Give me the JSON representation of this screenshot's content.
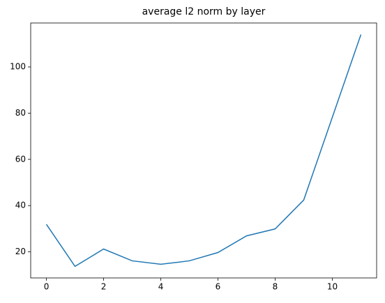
{
  "chart_data": {
    "type": "line",
    "title": "average l2 norm by layer",
    "x": [
      0,
      1,
      2,
      3,
      4,
      5,
      6,
      7,
      8,
      9,
      10,
      11
    ],
    "series": [
      {
        "name": "average l2 norm",
        "color": "#1f77b4",
        "values": [
          31.9,
          13.7,
          21.2,
          16.1,
          14.6,
          16.1,
          19.7,
          26.9,
          29.9,
          42.4,
          78.2,
          114.0
        ]
      }
    ],
    "xlim": [
      -0.55,
      11.55
    ],
    "xticks": [
      0,
      2,
      4,
      6,
      8,
      10
    ],
    "ylim": [
      8.7,
      119
    ],
    "yticks": [
      20,
      40,
      60,
      80,
      100
    ],
    "grid": false
  }
}
